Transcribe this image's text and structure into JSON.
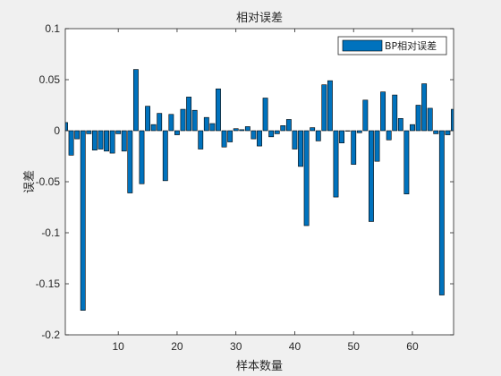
{
  "chart_data": {
    "type": "bar",
    "title": "相对误差",
    "xlabel": "样本数量",
    "ylabel": "误差",
    "xlim": [
      1,
      67
    ],
    "ylim": [
      -0.2,
      0.1
    ],
    "xticks": [
      10,
      20,
      30,
      40,
      50,
      60
    ],
    "yticks": [
      0.1,
      0.05,
      0,
      -0.05,
      -0.1,
      -0.15,
      -0.2
    ],
    "ytick_labels": [
      "0.1",
      "0.05",
      "0",
      "-0.05",
      "-0.1",
      "-0.15",
      "-0.2"
    ],
    "grid": false,
    "legend": "top-right",
    "bar_color": "#0072BD",
    "series": [
      {
        "name": "BP相对误差",
        "x": [
          1,
          2,
          3,
          4,
          5,
          6,
          7,
          8,
          9,
          10,
          11,
          12,
          13,
          14,
          15,
          16,
          17,
          18,
          19,
          20,
          21,
          22,
          23,
          24,
          25,
          26,
          27,
          28,
          29,
          30,
          31,
          32,
          33,
          34,
          35,
          36,
          37,
          38,
          39,
          40,
          41,
          42,
          43,
          44,
          45,
          46,
          47,
          48,
          49,
          50,
          51,
          52,
          53,
          54,
          55,
          56,
          57,
          58,
          59,
          60,
          61,
          62,
          63,
          64,
          65,
          66,
          67
        ],
        "values": [
          0.008,
          -0.024,
          -0.008,
          -0.176,
          -0.003,
          -0.019,
          -0.018,
          -0.02,
          -0.022,
          -0.003,
          -0.02,
          -0.061,
          0.06,
          -0.052,
          0.024,
          0.006,
          0.017,
          -0.049,
          0.016,
          -0.004,
          0.021,
          0.033,
          0.02,
          -0.018,
          0.013,
          0.007,
          0.041,
          -0.016,
          -0.011,
          0.002,
          0.001,
          0.004,
          -0.008,
          -0.015,
          0.032,
          -0.006,
          -0.003,
          0.005,
          0.011,
          -0.018,
          -0.035,
          -0.093,
          0.003,
          -0.01,
          0.045,
          0.049,
          -0.065,
          -0.012,
          0.0,
          -0.033,
          -0.002,
          0.03,
          -0.089,
          -0.03,
          0.038,
          -0.009,
          0.035,
          0.012,
          -0.062,
          0.006,
          0.025,
          0.046,
          0.022,
          -0.003,
          -0.161,
          -0.004,
          0.021
        ]
      }
    ]
  }
}
